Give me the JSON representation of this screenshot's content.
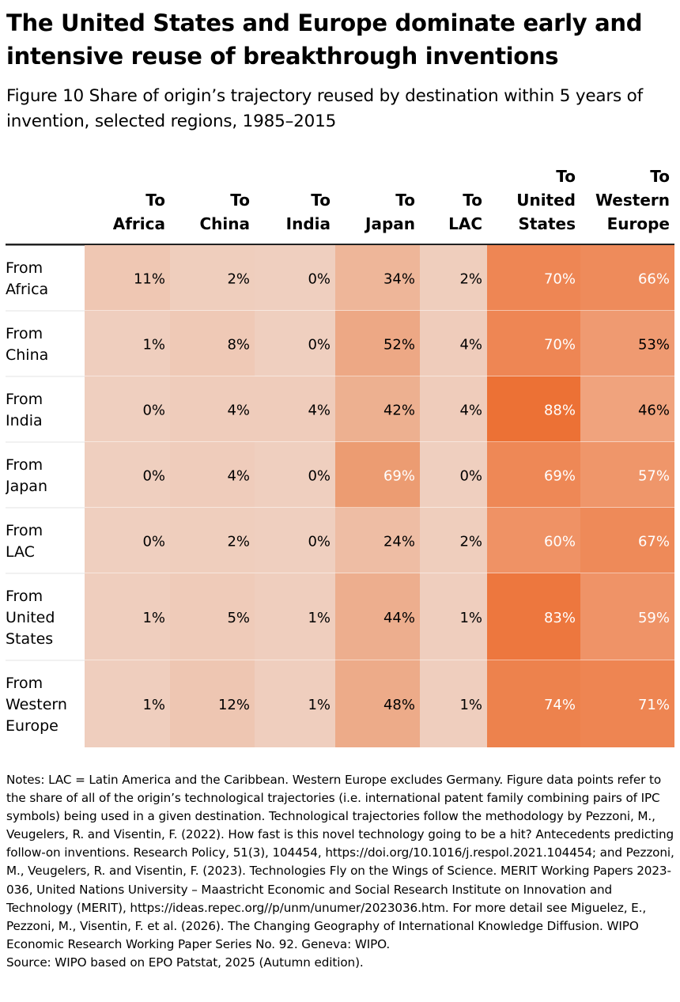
{
  "title": "The United States and Europe dominate early and intensive reuse of breakthrough inventions",
  "subtitle": "Figure 10 Share of origin’s trajectory reused by destination within 5 years of invention, selected regions, 1985–2015",
  "chart_data": {
    "type": "heatmap",
    "columns": [
      [
        "To",
        "Africa"
      ],
      [
        "To",
        "China"
      ],
      [
        "To",
        "India"
      ],
      [
        "To",
        "Japan"
      ],
      [
        "To",
        "LAC"
      ],
      [
        "To",
        "United",
        "States"
      ],
      [
        "To",
        "Western",
        "Europe"
      ]
    ],
    "rows": [
      [
        "From",
        "Africa"
      ],
      [
        "From",
        "China"
      ],
      [
        "From",
        "India"
      ],
      [
        "From",
        "Japan"
      ],
      [
        "From",
        "LAC"
      ],
      [
        "From",
        "United",
        "States"
      ],
      [
        "From",
        "Western",
        "Europe"
      ]
    ],
    "values": [
      [
        11,
        2,
        0,
        34,
        2,
        70,
        66
      ],
      [
        1,
        8,
        0,
        52,
        4,
        70,
        53
      ],
      [
        0,
        4,
        4,
        42,
        4,
        88,
        46
      ],
      [
        0,
        4,
        0,
        69,
        0,
        69,
        57
      ],
      [
        0,
        2,
        0,
        24,
        2,
        60,
        67
      ],
      [
        1,
        5,
        1,
        44,
        1,
        83,
        59
      ],
      [
        1,
        12,
        1,
        48,
        1,
        74,
        71
      ]
    ],
    "value_suffix": "%",
    "colors": {
      "low": "#f4d9cb",
      "high": "#eb6321",
      "muted_column_low": "#efcfbf",
      "muted_column_high": "#ec9a6f",
      "text_dark": "#000000",
      "text_light": "#ffffff",
      "header_rule": "#222222",
      "row_divider": "#ffffff"
    }
  },
  "notes": "Notes: LAC = Latin America and the Caribbean. Western Europe excludes Germany. Figure data points refer to the share of all of the origin’s technological trajectories (i.e. international patent family combining pairs of IPC symbols) being used in a given destination. Technological trajectories follow the methodology by Pezzoni, M., Veugelers, R. and Visentin, F. (2022). How fast is this novel technology going to be a hit? Antecedents predicting follow-on inventions. Research Policy, 51(3), 104454, https://doi.org/10.1016/j.respol.2021.104454; and Pezzoni, M., Veugelers, R. and Visentin, F. (2023). Technologies Fly on the Wings of Science. MERIT Working Papers 2023-036, United Nations University – Maastricht Economic and Social Research Institute on Innovation and Technology (MERIT), https://ideas.repec.org//p/unm/unumer/2023036.htm. For more detail see Miguelez, E., Pezzoni, M., Visentin, F. et al. (2026). The Changing Geography of International Knowledge Diffusion. WIPO Economic Research Working Paper Series No. 92. Geneva: WIPO.",
  "source": "Source: WIPO based on EPO Patstat, 2025 (Autumn edition)."
}
